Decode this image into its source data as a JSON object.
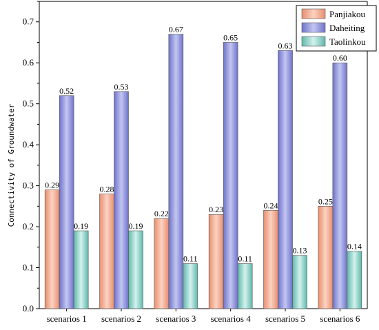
{
  "chart_data": {
    "type": "bar",
    "title": "",
    "xlabel": "",
    "ylabel": "Connectivity of Groundwater",
    "ylim": [
      0,
      0.75
    ],
    "yticks": [
      "0.0",
      "0.1",
      "0.2",
      "0.3",
      "0.4",
      "0.5",
      "0.6",
      "0.7"
    ],
    "grid": false,
    "legend_position": "top-right",
    "categories": [
      "scenarios 1",
      "scenarios 2",
      "scenarios 3",
      "scenarios 4",
      "scenarios 5",
      "scenarios 6"
    ],
    "series": [
      {
        "name": "Panjiakou",
        "color": "#f0a98c",
        "values": [
          0.29,
          0.28,
          0.22,
          0.23,
          0.24,
          0.25
        ],
        "labels": [
          "0.29",
          "0.28",
          "0.22",
          "0.23",
          "0.24",
          "0.25"
        ]
      },
      {
        "name": "Daheiting",
        "color": "#8f93d8",
        "values": [
          0.52,
          0.53,
          0.67,
          0.65,
          0.63,
          0.6
        ],
        "labels": [
          "0.52",
          "0.53",
          "0.67",
          "0.65",
          "0.63",
          "0.60"
        ]
      },
      {
        "name": "Taolinkou",
        "color": "#8fd2c8",
        "values": [
          0.19,
          0.19,
          0.11,
          0.11,
          0.13,
          0.14
        ],
        "labels": [
          "0.19",
          "0.19",
          "0.11",
          "0.11",
          "0.13",
          "0.14"
        ]
      }
    ]
  }
}
